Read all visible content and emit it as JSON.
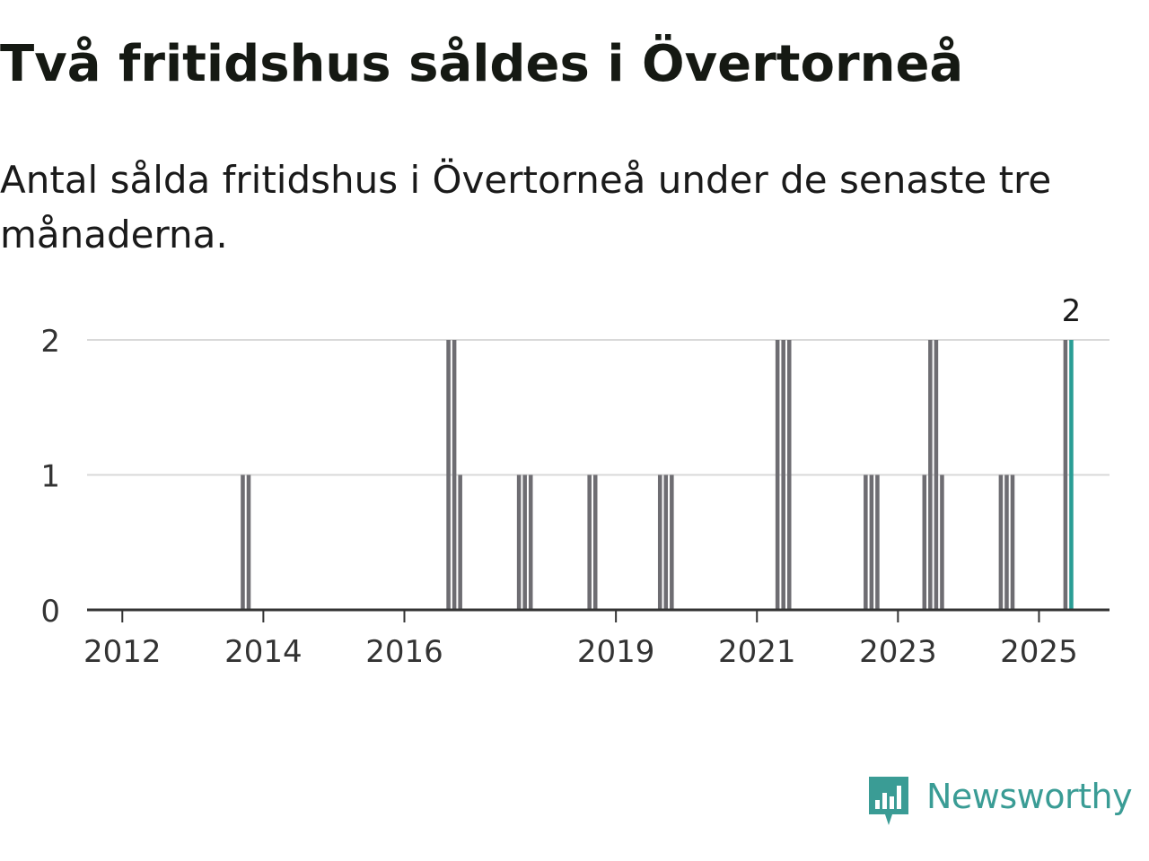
{
  "title": "Två fritidshus såldes i Övertorneå",
  "subtitle": "Antal sålda fritidshus i Övertorneå under de senaste tre månaderna.",
  "brand": {
    "name": "Newsworthy",
    "logo_icon": "newsworthy-chart-bubble-icon",
    "color": "#3a9c95"
  },
  "colors": {
    "bar": "#6e6d72",
    "highlight": "#2a9d95",
    "grid": "#d9d9d9",
    "axis": "#333333"
  },
  "chart_data": {
    "type": "bar",
    "xlim": [
      "2011-07",
      "2025-12"
    ],
    "ylim": [
      0,
      2
    ],
    "yticks": [
      0,
      1,
      2
    ],
    "xticks": [
      "2012",
      "2014",
      "2016",
      "2019",
      "2021",
      "2023",
      "2025"
    ],
    "grid": true,
    "series": [
      {
        "x": [
          "2013-09",
          "2013-10",
          "2016-08",
          "2016-09",
          "2016-10",
          "2017-08",
          "2017-09",
          "2017-10",
          "2018-08",
          "2018-09",
          "2019-08",
          "2019-09",
          "2019-10",
          "2021-04",
          "2021-05",
          "2021-06",
          "2022-07",
          "2022-08",
          "2022-09",
          "2023-05",
          "2023-06",
          "2023-07",
          "2023-08",
          "2024-06",
          "2024-07",
          "2024-08",
          "2025-05"
        ],
        "values": [
          1,
          1,
          2,
          2,
          1,
          1,
          1,
          1,
          1,
          1,
          1,
          1,
          1,
          2,
          2,
          2,
          1,
          1,
          1,
          1,
          2,
          2,
          1,
          1,
          1,
          1,
          2
        ]
      }
    ],
    "highlight": {
      "x": "2025-06",
      "value": 2,
      "label": "2"
    }
  }
}
